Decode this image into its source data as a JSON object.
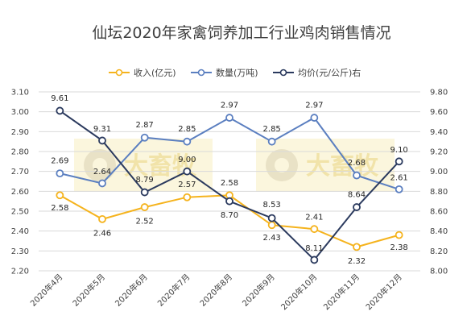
{
  "chart_data": {
    "type": "line",
    "title": "仙坛2020年家禽饲养加工行业鸡肉销售情况",
    "categories": [
      "2020年4月",
      "2020年5月",
      "2020年6月",
      "2020年7月",
      "2020年8月",
      "2020年9月",
      "2020年10月",
      "2020年11月",
      "2020年12月"
    ],
    "y_left": {
      "min": 2.2,
      "max": 3.1,
      "step": 0.1,
      "ticks": [
        "2.20",
        "2.30",
        "2.40",
        "2.50",
        "2.60",
        "2.70",
        "2.80",
        "2.90",
        "3.00",
        "3.10"
      ]
    },
    "y_right": {
      "min": 8.0,
      "max": 9.8,
      "step": 0.2,
      "ticks": [
        "8.00",
        "8.20",
        "8.40",
        "8.60",
        "8.80",
        "9.00",
        "9.20",
        "9.40",
        "9.60",
        "9.80"
      ]
    },
    "legend_position": "top",
    "grid": "horizontal",
    "series": [
      {
        "name": "收入(亿元)",
        "axis": "left",
        "color": "#f5b31d",
        "values": [
          2.58,
          2.46,
          2.52,
          2.57,
          2.58,
          2.43,
          2.41,
          2.32,
          2.38
        ],
        "labels": [
          "2.58",
          "2.46",
          "2.52",
          "2.57",
          "2.58",
          "2.43",
          "2.41",
          "2.32",
          "2.38"
        ]
      },
      {
        "name": "数量(万吨)",
        "axis": "left",
        "color": "#5b7fc0",
        "values": [
          2.69,
          2.64,
          2.87,
          2.85,
          2.97,
          2.85,
          2.97,
          2.68,
          2.61
        ],
        "labels": [
          "2.69",
          "2.64",
          "2.87",
          "2.85",
          "2.97",
          "2.85",
          "2.97",
          "2.68",
          "2.61"
        ]
      },
      {
        "name": "均价(元/公斤)右",
        "axis": "right",
        "color": "#2b3a5e",
        "values": [
          9.61,
          9.31,
          8.79,
          9.0,
          8.7,
          8.53,
          8.11,
          8.64,
          9.1
        ],
        "labels": [
          "9.61",
          "9.31",
          "8.79",
          "9.00",
          "8.70",
          "8.53",
          "8.11",
          "8.64",
          "9.10"
        ]
      }
    ]
  },
  "watermark": {
    "text": "大畜牧"
  }
}
